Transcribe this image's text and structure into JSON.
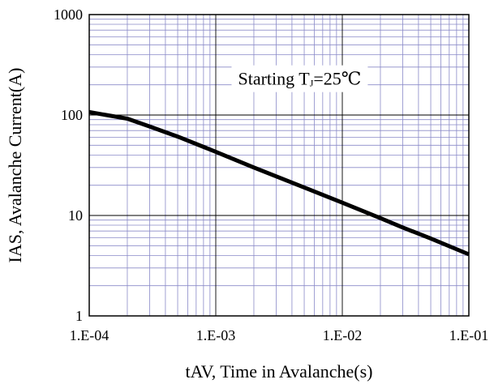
{
  "chart_data": {
    "type": "line",
    "title": "",
    "xlabel": "tAV, Time in Avalanche(s)",
    "ylabel": "IAS, Avalanche Current(A)",
    "x_scale": "log",
    "y_scale": "log",
    "xlim": [
      0.0001,
      0.1
    ],
    "ylim": [
      1,
      1000
    ],
    "x_tick_values": [
      0.0001,
      0.001,
      0.01,
      0.1
    ],
    "x_tick_labels": [
      "1.E-04",
      "1.E-03",
      "1.E-02",
      "1.E-01"
    ],
    "y_tick_values": [
      1,
      10,
      100,
      1000
    ],
    "y_tick_labels": [
      "1",
      "10",
      "100",
      "1000"
    ],
    "grid": true,
    "colors": {
      "line": "#000000",
      "major_grid": "#000000",
      "minor_grid": "#8a8ac8"
    },
    "annotation": {
      "prefix": "Starting T",
      "subscript": "J",
      "suffix": "=25℃",
      "x": 0.0015,
      "y": 200
    },
    "series": [
      {
        "x": [
          0.0001,
          0.0002,
          0.0003,
          0.0005,
          0.001,
          0.002,
          0.003,
          0.005,
          0.01,
          0.02,
          0.03,
          0.05,
          0.1
        ],
        "y": [
          107,
          92,
          77,
          61,
          43,
          30,
          24.5,
          19,
          13.4,
          9.4,
          7.6,
          5.9,
          4.1
        ]
      }
    ]
  }
}
